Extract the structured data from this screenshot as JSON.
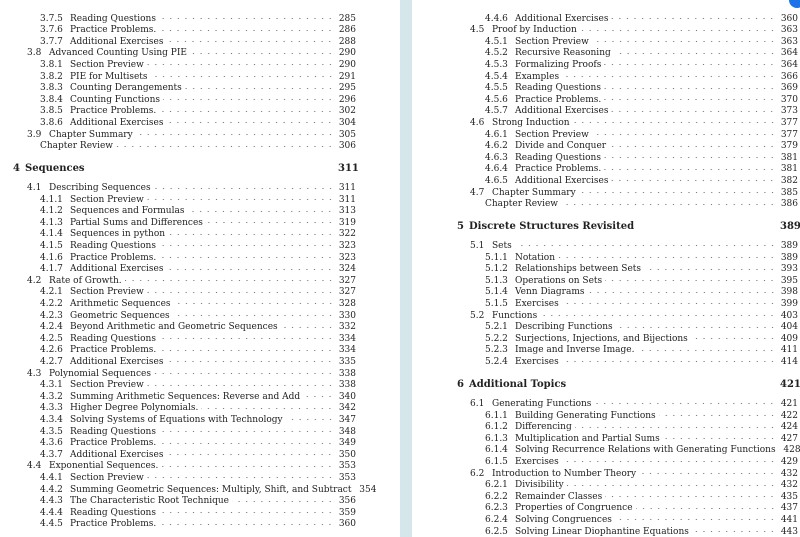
{
  "left_page": [
    {
      "level": 3,
      "num": "3.7.5",
      "title": "Reading Questions",
      "page": "285"
    },
    {
      "level": 3,
      "num": "3.7.6",
      "title": "Practice Problems.",
      "page": "286"
    },
    {
      "level": 3,
      "num": "3.7.7",
      "title": "Additional Exercises",
      "page": "288"
    },
    {
      "level": 2,
      "num": "3.8",
      "title": "Advanced Counting Using PIE",
      "page": "290"
    },
    {
      "level": 3,
      "num": "3.8.1",
      "title": "Section Preview",
      "page": "290"
    },
    {
      "level": 3,
      "num": "3.8.2",
      "title": "PIE for Multisets",
      "page": "291"
    },
    {
      "level": 3,
      "num": "3.8.3",
      "title": "Counting Derangements",
      "page": "295"
    },
    {
      "level": 3,
      "num": "3.8.4",
      "title": "Counting Functions",
      "page": "296"
    },
    {
      "level": 3,
      "num": "3.8.5",
      "title": "Practice Problems.",
      "page": "302"
    },
    {
      "level": 3,
      "num": "3.8.6",
      "title": "Additional Exercises",
      "page": "304"
    },
    {
      "level": 2,
      "num": "3.9",
      "title": "Chapter Summary",
      "page": "305"
    },
    {
      "level": "review",
      "num": "",
      "title": "Chapter Review",
      "page": "306"
    },
    {
      "level": 1,
      "num": "4",
      "title": "Sequences",
      "page": "311"
    },
    {
      "level": 2,
      "num": "4.1",
      "title": "Describing Sequences",
      "page": "311"
    },
    {
      "level": 3,
      "num": "4.1.1",
      "title": "Section Preview",
      "page": "311"
    },
    {
      "level": 3,
      "num": "4.1.2",
      "title": "Sequences and Formulas",
      "page": "313"
    },
    {
      "level": 3,
      "num": "4.1.3",
      "title": "Partial Sums and Differences",
      "page": "319"
    },
    {
      "level": 3,
      "num": "4.1.4",
      "title": "Sequences in python",
      "page": "322"
    },
    {
      "level": 3,
      "num": "4.1.5",
      "title": "Reading Questions",
      "page": "323"
    },
    {
      "level": 3,
      "num": "4.1.6",
      "title": "Practice Problems.",
      "page": "323"
    },
    {
      "level": 3,
      "num": "4.1.7",
      "title": "Additional Exercises",
      "page": "324"
    },
    {
      "level": 2,
      "num": "4.2",
      "title": "Rate of Growth.",
      "page": "327"
    },
    {
      "level": 3,
      "num": "4.2.1",
      "title": "Section Preview",
      "page": "327"
    },
    {
      "level": 3,
      "num": "4.2.2",
      "title": "Arithmetic Sequences",
      "page": "328"
    },
    {
      "level": 3,
      "num": "4.2.3",
      "title": "Geometric Sequences",
      "page": "330"
    },
    {
      "level": 3,
      "num": "4.2.4",
      "title": "Beyond Arithmetic and Geometric Sequences",
      "page": "332"
    },
    {
      "level": 3,
      "num": "4.2.5",
      "title": "Reading Questions",
      "page": "334"
    },
    {
      "level": 3,
      "num": "4.2.6",
      "title": "Practice Problems.",
      "page": "334"
    },
    {
      "level": 3,
      "num": "4.2.7",
      "title": "Additional Exercises",
      "page": "335"
    },
    {
      "level": 2,
      "num": "4.3",
      "title": "Polynomial Sequences",
      "page": "338"
    },
    {
      "level": 3,
      "num": "4.3.1",
      "title": "Section Preview",
      "page": "338"
    },
    {
      "level": 3,
      "num": "4.3.2",
      "title": "Summing Arithmetic Sequences: Reverse and Add",
      "page": "340"
    },
    {
      "level": 3,
      "num": "4.3.3",
      "title": "Higher Degree Polynomials.",
      "page": "342"
    },
    {
      "level": 3,
      "num": "4.3.4",
      "title": "Solving Systems of Equations with Technology",
      "page": "347"
    },
    {
      "level": 3,
      "num": "4.3.5",
      "title": "Reading Questions",
      "page": "348"
    },
    {
      "level": 3,
      "num": "4.3.6",
      "title": "Practice Problems.",
      "page": "349"
    },
    {
      "level": 3,
      "num": "4.3.7",
      "title": "Additional Exercises",
      "page": "350"
    },
    {
      "level": 2,
      "num": "4.4",
      "title": "Exponential Sequences.",
      "page": "353"
    },
    {
      "level": 3,
      "num": "4.4.1",
      "title": "Section Preview",
      "page": "353"
    },
    {
      "level": 3,
      "num": "4.4.2",
      "title": "Summing Geometric Sequences: Multiply, Shift, and Subtract",
      "page": "354"
    },
    {
      "level": 3,
      "num": "4.4.3",
      "title": "The Characteristic Root Technique",
      "page": "356"
    },
    {
      "level": 3,
      "num": "4.4.4",
      "title": "Reading Questions",
      "page": "359"
    },
    {
      "level": 3,
      "num": "4.4.5",
      "title": "Practice Problems.",
      "page": "360"
    }
  ],
  "right_page": [
    {
      "level": 3,
      "num": "4.4.6",
      "title": "Additional Exercises",
      "page": "360"
    },
    {
      "level": 2,
      "num": "4.5",
      "title": "Proof by Induction",
      "page": "363"
    },
    {
      "level": 3,
      "num": "4.5.1",
      "title": "Section Preview",
      "page": "363"
    },
    {
      "level": 3,
      "num": "4.5.2",
      "title": "Recursive Reasoning",
      "page": "364"
    },
    {
      "level": 3,
      "num": "4.5.3",
      "title": "Formalizing Proofs",
      "page": "364"
    },
    {
      "level": 3,
      "num": "4.5.4",
      "title": "Examples",
      "page": "366"
    },
    {
      "level": 3,
      "num": "4.5.5",
      "title": "Reading Questions",
      "page": "369"
    },
    {
      "level": 3,
      "num": "4.5.6",
      "title": "Practice Problems.",
      "page": "370"
    },
    {
      "level": 3,
      "num": "4.5.7",
      "title": "Additional Exercises",
      "page": "373"
    },
    {
      "level": 2,
      "num": "4.6",
      "title": "Strong Induction",
      "page": "377"
    },
    {
      "level": 3,
      "num": "4.6.1",
      "title": "Section Preview",
      "page": "377"
    },
    {
      "level": 3,
      "num": "4.6.2",
      "title": "Divide and Conquer",
      "page": "379"
    },
    {
      "level": 3,
      "num": "4.6.3",
      "title": "Reading Questions",
      "page": "381"
    },
    {
      "level": 3,
      "num": "4.6.4",
      "title": "Practice Problems.",
      "page": "381"
    },
    {
      "level": 3,
      "num": "4.6.5",
      "title": "Additional Exercises",
      "page": "382"
    },
    {
      "level": 2,
      "num": "4.7",
      "title": "Chapter Summary",
      "page": "385"
    },
    {
      "level": "review",
      "num": "",
      "title": "Chapter Review",
      "page": "386"
    },
    {
      "level": 1,
      "num": "5",
      "title": "Discrete Structures Revisited",
      "page": "389"
    },
    {
      "level": 2,
      "num": "5.1",
      "title": "Sets",
      "page": "389"
    },
    {
      "level": 3,
      "num": "5.1.1",
      "title": "Notation",
      "page": "389"
    },
    {
      "level": 3,
      "num": "5.1.2",
      "title": "Relationships between Sets",
      "page": "393"
    },
    {
      "level": 3,
      "num": "5.1.3",
      "title": "Operations on Sets",
      "page": "395"
    },
    {
      "level": 3,
      "num": "5.1.4",
      "title": "Venn Diagrams",
      "page": "398"
    },
    {
      "level": 3,
      "num": "5.1.5",
      "title": "Exercises",
      "page": "399"
    },
    {
      "level": 2,
      "num": "5.2",
      "title": "Functions",
      "page": "403"
    },
    {
      "level": 3,
      "num": "5.2.1",
      "title": "Describing Functions",
      "page": "404"
    },
    {
      "level": 3,
      "num": "5.2.2",
      "title": "Surjections, Injections, and Bijections",
      "page": "409"
    },
    {
      "level": 3,
      "num": "5.2.3",
      "title": "Image and Inverse Image.",
      "page": "411"
    },
    {
      "level": 3,
      "num": "5.2.4",
      "title": "Exercises",
      "page": "414"
    },
    {
      "level": 1,
      "num": "6",
      "title": "Additional Topics",
      "page": "421"
    },
    {
      "level": 2,
      "num": "6.1",
      "title": "Generating Functions",
      "page": "421"
    },
    {
      "level": 3,
      "num": "6.1.1",
      "title": "Building Generating Functions",
      "page": "422"
    },
    {
      "level": 3,
      "num": "6.1.2",
      "title": "Differencing",
      "page": "424"
    },
    {
      "level": 3,
      "num": "6.1.3",
      "title": "Multiplication and Partial Sums",
      "page": "427"
    },
    {
      "level": 3,
      "num": "6.1.4",
      "title": "Solving Recurrence Relations with Generating Functions",
      "page": "428"
    },
    {
      "level": 3,
      "num": "6.1.5",
      "title": "Exercises",
      "page": "429"
    },
    {
      "level": 2,
      "num": "6.2",
      "title": "Introduction to Number Theory",
      "page": "432"
    },
    {
      "level": 3,
      "num": "6.2.1",
      "title": "Divisibility",
      "page": "432"
    },
    {
      "level": 3,
      "num": "6.2.2",
      "title": "Remainder Classes",
      "page": "435"
    },
    {
      "level": 3,
      "num": "6.2.3",
      "title": "Properties of Congruence",
      "page": "437"
    },
    {
      "level": 3,
      "num": "6.2.4",
      "title": "Solving Congruences",
      "page": "441"
    },
    {
      "level": 3,
      "num": "6.2.5",
      "title": "Solving Linear Diophantine Equations",
      "page": "443"
    }
  ],
  "colors": {
    "viewer_background": "#d5e7eb",
    "page": "#ffffff",
    "badge": "#1a73e8"
  }
}
